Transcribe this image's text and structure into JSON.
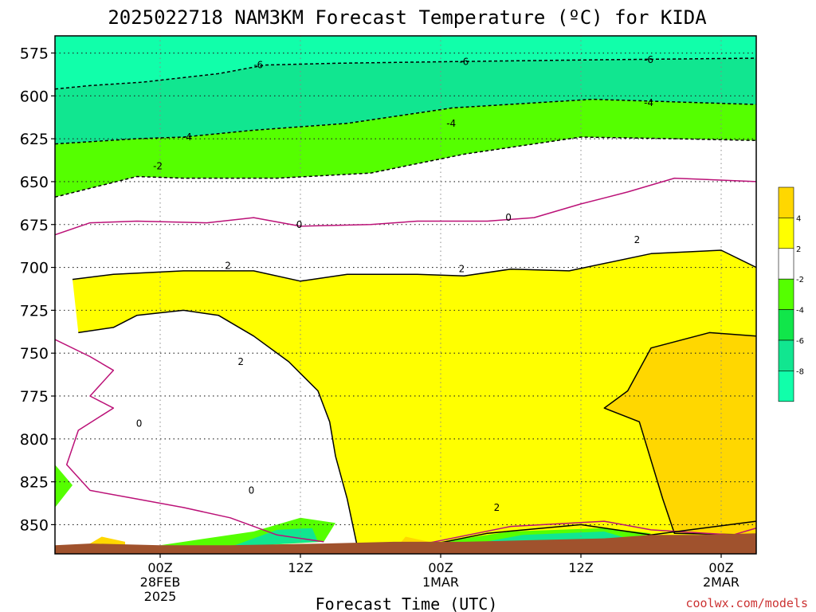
{
  "chart_data": {
    "type": "heatmap",
    "title": "2025022718 NAM3KM Forecast Temperature (ºC) for KIDA",
    "xlabel": "Forecast Time (UTC)",
    "ylabel": "",
    "watermark": "coolwx.com/models",
    "y_axis": {
      "unit": "hPa",
      "inverted": true,
      "range": [
        565,
        867
      ],
      "ticks": [
        575,
        600,
        625,
        650,
        675,
        700,
        725,
        750,
        775,
        800,
        825,
        850
      ],
      "tick_labels": [
        "575",
        "600",
        "625",
        "650",
        "675",
        "700",
        "725",
        "750",
        "775",
        "800",
        "825",
        "850"
      ]
    },
    "x_axis": {
      "unit": "hours since 2025-02-27 18Z",
      "range": [
        -3,
        57
      ],
      "ticks": [
        6,
        18,
        30,
        42,
        54
      ],
      "tick_labels": [
        [
          "00Z",
          "28FEB",
          "2025"
        ],
        [
          "12Z"
        ],
        [
          "00Z",
          "1MAR"
        ],
        [
          "12Z"
        ],
        [
          "00Z",
          "2MAR"
        ]
      ]
    },
    "grid": true,
    "legend": {
      "placement": "right",
      "labels": [
        "4",
        "2",
        "-2",
        "-4",
        "-6",
        "-8"
      ],
      "bins": [
        {
          "range": [
            4,
            6
          ],
          "color": "#ffd700"
        },
        {
          "range": [
            2,
            4
          ],
          "color": "#ffff00"
        },
        {
          "range": [
            -2,
            2
          ],
          "color": "#ffffff"
        },
        {
          "range": [
            -4,
            -2
          ],
          "color": "#55ff00"
        },
        {
          "range": [
            -6,
            -4
          ],
          "color": "#11e64a"
        },
        {
          "range": [
            -8,
            -6
          ],
          "color": "#11e690"
        },
        {
          "range": [
            -10,
            -8
          ],
          "color": "#11ffaa"
        }
      ]
    },
    "colors": {
      "terrain": "#a0522d",
      "zero_contour": "#bb1177",
      "contour": "#000000"
    },
    "contour_labels": [
      {
        "text": "-6",
        "x": 14.4,
        "y": 582
      },
      {
        "text": "-6",
        "x": 32,
        "y": 580
      },
      {
        "text": "-6",
        "x": 47.8,
        "y": 579
      },
      {
        "text": "-4",
        "x": 47.8,
        "y": 604
      },
      {
        "text": "-4",
        "x": 30.9,
        "y": 616
      },
      {
        "text": "-4",
        "x": 8.3,
        "y": 624
      },
      {
        "text": "-2",
        "x": 5.8,
        "y": 641
      },
      {
        "text": "0",
        "x": 17.9,
        "y": 675
      },
      {
        "text": "0",
        "x": 35.8,
        "y": 671
      },
      {
        "text": "2",
        "x": 11.8,
        "y": 699
      },
      {
        "text": "2",
        "x": 31.8,
        "y": 701
      },
      {
        "text": "2",
        "x": 46.8,
        "y": 684
      },
      {
        "text": "2",
        "x": 12.9,
        "y": 755
      },
      {
        "text": "0",
        "x": 4.2,
        "y": 791
      },
      {
        "text": "0",
        "x": 13.8,
        "y": 830
      },
      {
        "text": "2",
        "x": 34.8,
        "y": 840
      }
    ],
    "regions": [
      {
        "color": "#11ffaa",
        "points": [
          [
            -3,
            565
          ],
          [
            57,
            565
          ],
          [
            57,
            578
          ],
          [
            43,
            579
          ],
          [
            31,
            580
          ],
          [
            21,
            581
          ],
          [
            15,
            582
          ],
          [
            11,
            587
          ],
          [
            4.5,
            592
          ],
          [
            0,
            594
          ],
          [
            -3,
            596
          ]
        ]
      },
      {
        "color": "#11e690",
        "points": [
          [
            -3,
            596
          ],
          [
            0,
            594
          ],
          [
            4.5,
            592
          ],
          [
            11,
            587
          ],
          [
            15,
            582
          ],
          [
            21,
            581
          ],
          [
            31,
            580
          ],
          [
            43,
            579
          ],
          [
            57,
            578
          ],
          [
            57,
            605
          ],
          [
            43,
            602
          ],
          [
            31,
            607
          ],
          [
            22,
            616
          ],
          [
            14,
            620
          ],
          [
            8,
            624
          ],
          [
            4,
            625
          ],
          [
            -3,
            628
          ]
        ]
      },
      {
        "color": "#55ff00",
        "points": [
          [
            -3,
            628
          ],
          [
            4,
            625
          ],
          [
            8,
            624
          ],
          [
            14,
            620
          ],
          [
            22,
            616
          ],
          [
            31,
            607
          ],
          [
            43,
            602
          ],
          [
            57,
            605
          ],
          [
            57,
            626
          ],
          [
            50,
            625
          ],
          [
            42,
            624
          ],
          [
            32,
            634
          ],
          [
            24,
            645
          ],
          [
            16,
            648
          ],
          [
            8,
            648
          ],
          [
            4,
            647
          ],
          [
            -3,
            659
          ]
        ]
      },
      {
        "color": "#ffff00",
        "points": [
          [
            -1.5,
            707
          ],
          [
            2,
            704
          ],
          [
            8,
            702
          ],
          [
            14,
            702
          ],
          [
            18,
            708
          ],
          [
            22,
            704
          ],
          [
            28,
            704
          ],
          [
            32,
            705
          ],
          [
            36,
            701
          ],
          [
            41,
            702
          ],
          [
            48,
            692
          ],
          [
            54,
            690
          ],
          [
            57,
            700
          ],
          [
            57,
            867
          ],
          [
            23,
            867
          ],
          [
            22,
            835
          ],
          [
            21,
            810
          ],
          [
            20.5,
            790
          ],
          [
            19.5,
            772
          ],
          [
            17,
            755
          ],
          [
            14,
            740
          ],
          [
            11,
            728
          ],
          [
            8,
            725
          ],
          [
            4,
            728
          ],
          [
            2,
            735
          ],
          [
            -1,
            738
          ]
        ]
      },
      {
        "color": "#ffd700",
        "points": [
          [
            57,
            740
          ],
          [
            53,
            738
          ],
          [
            48,
            747
          ],
          [
            46,
            772
          ],
          [
            44,
            782
          ],
          [
            47,
            790
          ],
          [
            49,
            835
          ],
          [
            50,
            855
          ],
          [
            57,
            856
          ]
        ]
      },
      {
        "color": "#55ff00",
        "points": [
          [
            -3,
            815
          ],
          [
            -1.5,
            827
          ],
          [
            -3,
            840
          ]
        ]
      },
      {
        "color": "#55ff00",
        "points": [
          [
            6,
            862
          ],
          [
            14,
            854
          ],
          [
            18,
            846
          ],
          [
            21,
            849
          ],
          [
            20,
            860
          ],
          [
            12,
            863
          ]
        ]
      },
      {
        "color": "#11e690",
        "points": [
          [
            12,
            863
          ],
          [
            16,
            853
          ],
          [
            19,
            852
          ],
          [
            19.5,
            860
          ]
        ]
      },
      {
        "color": "#55ff00",
        "points": [
          [
            28,
            862
          ],
          [
            36,
            854
          ],
          [
            44,
            852
          ],
          [
            48,
            855
          ],
          [
            46,
            860
          ],
          [
            36,
            861
          ]
        ]
      },
      {
        "color": "#11e690",
        "points": [
          [
            33,
            861
          ],
          [
            37,
            856
          ],
          [
            44,
            854
          ],
          [
            46,
            858
          ]
        ]
      },
      {
        "color": "#ffd700",
        "points": [
          [
            26,
            865
          ],
          [
            27,
            857
          ],
          [
            29,
            860
          ],
          [
            28.5,
            865
          ]
        ]
      },
      {
        "color": "#ffd700",
        "points": [
          [
            -1.5,
            867
          ],
          [
            1,
            857
          ],
          [
            3,
            860
          ],
          [
            3,
            867
          ]
        ]
      }
    ],
    "contours": [
      {
        "color": "#000000",
        "dashed": true,
        "points": [
          [
            -3,
            596
          ],
          [
            0,
            594
          ],
          [
            4.5,
            592
          ],
          [
            11,
            587
          ],
          [
            15,
            582
          ],
          [
            21,
            581
          ],
          [
            31,
            580
          ],
          [
            43,
            579
          ],
          [
            57,
            578
          ]
        ]
      },
      {
        "color": "#000000",
        "dashed": true,
        "points": [
          [
            -3,
            628
          ],
          [
            4,
            625
          ],
          [
            8,
            624
          ],
          [
            14,
            620
          ],
          [
            22,
            616
          ],
          [
            31,
            607
          ],
          [
            43,
            602
          ],
          [
            57,
            605
          ]
        ]
      },
      {
        "color": "#000000",
        "dashed": true,
        "points": [
          [
            -3,
            659
          ],
          [
            4,
            647
          ],
          [
            8,
            648
          ],
          [
            16,
            648
          ],
          [
            24,
            645
          ],
          [
            32,
            634
          ],
          [
            42,
            624
          ],
          [
            50,
            625
          ],
          [
            57,
            626
          ]
        ]
      },
      {
        "color": "#bb1177",
        "dashed": false,
        "points": [
          [
            -3,
            681
          ],
          [
            0,
            674
          ],
          [
            4,
            673
          ],
          [
            10,
            674
          ],
          [
            14,
            671
          ],
          [
            18,
            676
          ],
          [
            24,
            675
          ],
          [
            28,
            673
          ],
          [
            34,
            673
          ],
          [
            38,
            671
          ],
          [
            42,
            663
          ],
          [
            46,
            656
          ],
          [
            50,
            648
          ],
          [
            57,
            650
          ]
        ]
      },
      {
        "color": "#000000",
        "dashed": false,
        "points": [
          [
            -1.5,
            707
          ],
          [
            2,
            704
          ],
          [
            8,
            702
          ],
          [
            14,
            702
          ],
          [
            18,
            708
          ],
          [
            22,
            704
          ],
          [
            28,
            704
          ],
          [
            32,
            705
          ],
          [
            36,
            701
          ],
          [
            41,
            702
          ],
          [
            48,
            692
          ],
          [
            54,
            690
          ],
          [
            57,
            700
          ]
        ]
      },
      {
        "color": "#000000",
        "dashed": false,
        "points": [
          [
            -1,
            738
          ],
          [
            2,
            735
          ],
          [
            4,
            728
          ],
          [
            8,
            725
          ],
          [
            11,
            728
          ],
          [
            14,
            740
          ],
          [
            17,
            755
          ],
          [
            19.5,
            772
          ],
          [
            20.5,
            790
          ],
          [
            21,
            810
          ],
          [
            22,
            835
          ],
          [
            23,
            867
          ]
        ]
      },
      {
        "color": "#000000",
        "dashed": false,
        "points": [
          [
            57,
            740
          ],
          [
            53,
            738
          ],
          [
            48,
            747
          ],
          [
            46,
            772
          ],
          [
            44,
            782
          ],
          [
            47,
            790
          ],
          [
            49,
            835
          ],
          [
            50,
            855
          ],
          [
            57,
            856
          ]
        ]
      },
      {
        "color": "#bb1177",
        "dashed": false,
        "points": [
          [
            -3,
            742
          ],
          [
            0,
            752
          ],
          [
            2,
            760
          ],
          [
            0,
            775
          ],
          [
            2,
            782
          ],
          [
            -1,
            795
          ],
          [
            -2,
            815
          ],
          [
            0,
            830
          ],
          [
            4,
            835
          ],
          [
            8,
            840
          ],
          [
            12,
            846
          ],
          [
            16,
            856
          ],
          [
            20,
            860
          ]
        ]
      },
      {
        "color": "#bb1177",
        "dashed": false,
        "points": [
          [
            28,
            862
          ],
          [
            36,
            851
          ],
          [
            44,
            848
          ],
          [
            48,
            853
          ],
          [
            55,
            856
          ],
          [
            57,
            852
          ]
        ]
      },
      {
        "color": "#000000",
        "dashed": false,
        "points": [
          [
            26,
            866
          ],
          [
            34,
            855
          ],
          [
            42,
            850
          ],
          [
            48,
            856
          ],
          [
            57,
            848
          ]
        ]
      }
    ],
    "terrain": {
      "points": [
        [
          -3,
          867
        ],
        [
          -3,
          862
        ],
        [
          0,
          861
        ],
        [
          6,
          862
        ],
        [
          12,
          862
        ],
        [
          20,
          861
        ],
        [
          26,
          860
        ],
        [
          32,
          860
        ],
        [
          38,
          859
        ],
        [
          44,
          858
        ],
        [
          48,
          856
        ],
        [
          52,
          856
        ],
        [
          57,
          855
        ],
        [
          57,
          867
        ]
      ]
    }
  }
}
